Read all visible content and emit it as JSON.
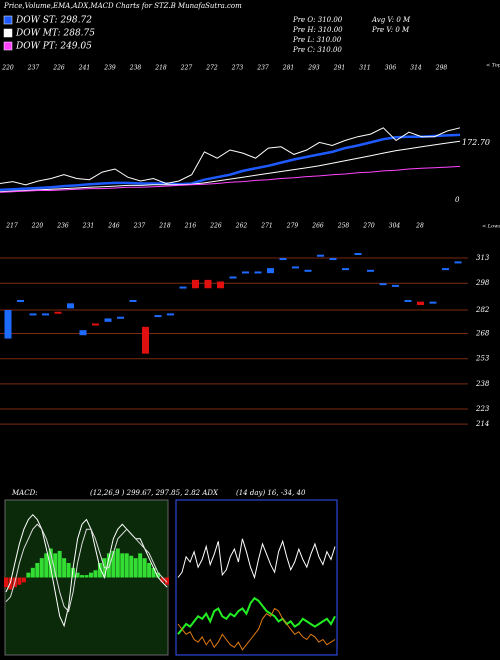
{
  "title": "Price,Volume,EMA,ADX,MACD Charts for STZ.B MunafaSutra.com",
  "stats": [
    "Pre O: 310.00",
    "Pre H: 310.00",
    "Pre L: 310.00",
    "Pre C: 310.00"
  ],
  "volume_stats": [
    "Avg V: 0 M",
    "Pre V: 0 M"
  ],
  "chart_data": [
    {
      "type": "line",
      "series": [
        {
          "name": "DOW ST: 298.72",
          "color": "#1e5bff",
          "values": [
            212,
            213,
            214,
            215,
            216,
            218,
            219,
            221,
            222,
            223,
            223,
            222,
            222,
            222,
            221,
            222,
            228,
            232,
            236,
            242,
            246,
            250,
            255,
            260,
            264,
            268,
            272,
            278,
            282,
            287,
            292,
            295,
            296,
            296,
            297,
            298,
            298.72
          ]
        },
        {
          "name": "DOW MT: 288.75",
          "color": "#ffffff",
          "values": [
            209,
            210,
            211,
            212,
            213,
            214,
            215,
            216,
            217,
            218,
            219,
            219,
            220,
            220,
            220,
            221,
            223,
            226,
            229,
            232,
            235,
            238,
            241,
            244,
            247,
            250,
            254,
            258,
            262,
            266,
            270,
            274,
            277,
            280,
            283,
            286,
            288.75
          ]
        },
        {
          "name": "DOW PT: 249.05",
          "color": "#ff44ff",
          "values": [
            208,
            209,
            210,
            211,
            211,
            212,
            213,
            214,
            214,
            215,
            216,
            216,
            217,
            218,
            219,
            220,
            221,
            222,
            224,
            225,
            227,
            228,
            230,
            231,
            233,
            234,
            236,
            237,
            239,
            240,
            242,
            243,
            245,
            246,
            247,
            248,
            249.05
          ]
        },
        {
          "color": "#ffffff",
          "values": [
            222,
            225,
            220,
            226,
            230,
            236,
            230,
            228,
            240,
            245,
            232,
            226,
            230,
            222,
            226,
            236,
            272,
            262,
            275,
            270,
            262,
            278,
            280,
            268,
            275,
            287,
            282,
            290,
            296,
            300,
            310,
            290,
            303,
            296,
            296,
            305,
            310
          ]
        }
      ],
      "ylim": [
        196,
        417
      ],
      "annotations": [
        "172.70",
        "0"
      ],
      "tops": [
        220,
        237,
        226,
        241,
        239,
        238,
        218,
        227,
        272,
        273,
        237,
        281,
        293,
        291,
        311,
        306,
        314,
        298
      ],
      "tops_label": "< Tops",
      "lows": [
        217,
        220,
        236,
        231,
        246,
        237,
        218,
        216,
        226,
        262,
        271,
        279,
        266,
        258,
        270,
        304,
        28
      ],
      "lows_label": "< Lows"
    },
    {
      "type": "candlestick",
      "open": [
        265,
        288,
        280,
        280,
        281,
        283,
        267,
        274,
        275,
        278,
        288,
        272,
        279,
        280,
        296,
        300,
        300,
        299,
        302,
        305,
        305,
        304,
        313,
        308,
        306,
        315,
        313,
        307,
        316,
        306,
        298,
        297,
        288,
        287,
        287,
        307,
        311
      ],
      "close": [
        282,
        288,
        280,
        280,
        280,
        286,
        270,
        273,
        277,
        278,
        288,
        256,
        279,
        280,
        296,
        295,
        295,
        295,
        302,
        305,
        305,
        307,
        313,
        308,
        306,
        315,
        313,
        307,
        316,
        306,
        298,
        297,
        288,
        285,
        287,
        307,
        311
      ],
      "up_color": "#1e6bff",
      "down_color": "#e01010",
      "ylim": [
        192.6,
        317.8
      ],
      "yticks": [
        313,
        298,
        282,
        268,
        253,
        238,
        223,
        214
      ]
    },
    {
      "type": "macd",
      "title": "MACD:",
      "params": "(12,26,9 ) 299.67, 297.85, 2.82 ADX",
      "histogram": [
        -2,
        -2.5,
        -2,
        -1.5,
        -1,
        1,
        2,
        3,
        4,
        5,
        6,
        5,
        5.5,
        4,
        3,
        2,
        1,
        0.5,
        0.5,
        1,
        1.5,
        3,
        4,
        5,
        5.5,
        6,
        5,
        5,
        4.5,
        4,
        5,
        4,
        3,
        2,
        1,
        -1,
        -1.5
      ],
      "series": [
        {
          "color": "#ffffff",
          "values": [
            -3,
            -1,
            3,
            7,
            10,
            12,
            13,
            12,
            10,
            6,
            2,
            -3,
            -8,
            -10,
            -6,
            2,
            8,
            11,
            12,
            10,
            6,
            2,
            0,
            4,
            8,
            10,
            11,
            10,
            9,
            8,
            8,
            6,
            4,
            2,
            0,
            -1,
            -2
          ]
        },
        {
          "color": "#dddddd",
          "values": [
            -5,
            -4,
            -1,
            3,
            6,
            8,
            10,
            11,
            10,
            8,
            5,
            1,
            -3,
            -6,
            -7,
            -3,
            3,
            7,
            10,
            10,
            8,
            5,
            2,
            2,
            5,
            8,
            9,
            10,
            9,
            8,
            7,
            6,
            5,
            3,
            1,
            0,
            -1
          ]
        }
      ],
      "ylim": [
        -15,
        15
      ]
    },
    {
      "type": "adx",
      "title": "(14 day) 16, -34, 40",
      "series": [
        {
          "color": "#ffffff",
          "values": [
            30,
            32,
            38,
            36,
            40,
            34,
            37,
            42,
            35,
            39,
            44,
            31,
            33,
            38,
            41,
            36,
            45,
            40,
            34,
            30,
            37,
            43,
            39,
            35,
            32,
            40,
            44,
            38,
            33,
            36,
            41,
            37,
            34,
            39,
            43,
            38,
            35,
            40,
            37,
            42
          ]
        },
        {
          "color": "#22ee22",
          "values": [
            8,
            10,
            12,
            11,
            13,
            15,
            14,
            16,
            13,
            17,
            18,
            15,
            14,
            16,
            15,
            17,
            18,
            16,
            20,
            22,
            21,
            19,
            17,
            16,
            15,
            13,
            14,
            12,
            13,
            11,
            12,
            14,
            13,
            12,
            11,
            12,
            13,
            14,
            12,
            15
          ]
        },
        {
          "color": "#e07a10",
          "values": [
            12,
            10,
            8,
            9,
            6,
            5,
            7,
            4,
            6,
            3,
            5,
            8,
            6,
            4,
            3,
            5,
            2,
            4,
            6,
            8,
            10,
            14,
            16,
            15,
            18,
            17,
            14,
            12,
            10,
            8,
            9,
            7,
            6,
            8,
            7,
            5,
            6,
            4,
            5,
            6
          ]
        }
      ],
      "ylim": [
        0,
        60
      ]
    }
  ]
}
